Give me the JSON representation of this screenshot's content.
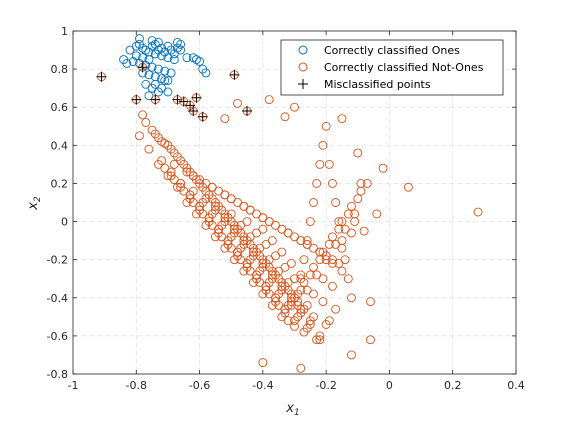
{
  "chart_data": {
    "type": "scatter",
    "xlabel": "x",
    "xlabel_sub": "1",
    "ylabel": "x",
    "ylabel_sub": "2",
    "xlim": [
      -1,
      0.4
    ],
    "ylim": [
      -0.8,
      1
    ],
    "xticks": [
      -1,
      -0.8,
      -0.6,
      -0.4,
      -0.2,
      0,
      0.2,
      0.4
    ],
    "xtick_labels": [
      "-1",
      "-0.8",
      "-0.6",
      "-0.4",
      "-0.2",
      "0",
      "0.2",
      "0.4"
    ],
    "yticks": [
      -0.8,
      -0.6,
      -0.4,
      -0.2,
      0,
      0.2,
      0.4,
      0.6,
      0.8,
      1
    ],
    "ytick_labels": [
      "-0.8",
      "-0.6",
      "-0.4",
      "-0.2",
      "0",
      "0.2",
      "0.4",
      "0.6",
      "0.8",
      "1"
    ],
    "grid": true,
    "legend_position": "top-right",
    "series": [
      {
        "name": "Correctly classified Ones",
        "marker": "circle",
        "color": "#0072BD",
        "x": [
          -0.82,
          -0.8,
          -0.79,
          -0.78,
          -0.77,
          -0.76,
          -0.75,
          -0.74,
          -0.73,
          -0.72,
          -0.71,
          -0.7,
          -0.69,
          -0.68,
          -0.67,
          -0.66,
          -0.8,
          -0.78,
          -0.76,
          -0.74,
          -0.72,
          -0.7,
          -0.68,
          -0.81,
          -0.79,
          -0.77,
          -0.75,
          -0.73,
          -0.71,
          -0.69,
          -0.78,
          -0.76,
          -0.74,
          -0.72,
          -0.7,
          -0.62,
          -0.61,
          -0.6,
          -0.59,
          -0.84,
          -0.83,
          -0.77,
          -0.75,
          -0.73,
          -0.64,
          -0.58,
          -0.76,
          -0.74,
          -0.72,
          -0.7,
          -0.75,
          -0.73,
          -0.67,
          -0.66,
          -0.79,
          -0.71
        ],
        "y": [
          0.9,
          0.92,
          0.93,
          0.91,
          0.9,
          0.89,
          0.92,
          0.93,
          0.9,
          0.91,
          0.89,
          0.92,
          0.9,
          0.88,
          0.91,
          0.93,
          0.87,
          0.86,
          0.85,
          0.88,
          0.87,
          0.86,
          0.85,
          0.84,
          0.83,
          0.82,
          0.81,
          0.8,
          0.79,
          0.78,
          0.78,
          0.77,
          0.76,
          0.75,
          0.74,
          0.86,
          0.85,
          0.84,
          0.8,
          0.85,
          0.83,
          0.72,
          0.7,
          0.68,
          0.86,
          0.78,
          0.66,
          0.72,
          0.7,
          0.68,
          0.95,
          0.94,
          0.94,
          0.9,
          0.96,
          0.74
        ]
      },
      {
        "name": "Correctly classified Not-Ones",
        "marker": "circle",
        "color": "#D95319",
        "x": [
          -0.78,
          -0.77,
          -0.75,
          -0.74,
          -0.73,
          -0.72,
          -0.71,
          -0.7,
          -0.69,
          -0.68,
          -0.67,
          -0.66,
          -0.65,
          -0.64,
          -0.63,
          -0.62,
          -0.61,
          -0.6,
          -0.59,
          -0.58,
          -0.57,
          -0.56,
          -0.55,
          -0.54,
          -0.53,
          -0.52,
          -0.51,
          -0.5,
          -0.49,
          -0.48,
          -0.47,
          -0.46,
          -0.45,
          -0.44,
          -0.43,
          -0.42,
          -0.41,
          -0.4,
          -0.39,
          -0.38,
          -0.37,
          -0.36,
          -0.35,
          -0.34,
          -0.33,
          -0.32,
          -0.31,
          -0.3,
          -0.29,
          -0.28,
          -0.27,
          -0.26,
          -0.25,
          -0.24,
          -0.23,
          -0.22,
          -0.21,
          -0.2,
          -0.19,
          -0.18,
          -0.17,
          -0.16,
          -0.15,
          -0.14,
          -0.13,
          -0.12,
          -0.11,
          -0.1,
          -0.09,
          -0.08,
          -0.06,
          -0.04,
          -0.02,
          0.06,
          0.28,
          -0.79,
          -0.76,
          -0.73,
          -0.7,
          -0.67,
          -0.64,
          -0.61,
          -0.58,
          -0.55,
          -0.52,
          -0.49,
          -0.46,
          -0.43,
          -0.4,
          -0.37,
          -0.34,
          -0.31,
          -0.28,
          -0.25,
          -0.22,
          -0.19,
          -0.16,
          -0.13,
          -0.1,
          -0.07,
          -0.72,
          -0.69,
          -0.66,
          -0.63,
          -0.6,
          -0.57,
          -0.54,
          -0.51,
          -0.48,
          -0.45,
          -0.42,
          -0.39,
          -0.36,
          -0.33,
          -0.3,
          -0.27,
          -0.24,
          -0.21,
          -0.18,
          -0.15,
          -0.12,
          -0.09,
          -0.71,
          -0.68,
          -0.65,
          -0.62,
          -0.59,
          -0.56,
          -0.53,
          -0.5,
          -0.47,
          -0.44,
          -0.41,
          -0.38,
          -0.35,
          -0.32,
          -0.29,
          -0.26,
          -0.23,
          -0.2,
          -0.17,
          -0.14,
          -0.11,
          -0.69,
          -0.66,
          -0.63,
          -0.6,
          -0.57,
          -0.54,
          -0.51,
          -0.48,
          -0.45,
          -0.42,
          -0.39,
          -0.36,
          -0.33,
          -0.3,
          -0.27,
          -0.24,
          -0.21,
          -0.18,
          -0.15,
          -0.12,
          -0.66,
          -0.63,
          -0.6,
          -0.57,
          -0.54,
          -0.51,
          -0.48,
          -0.45,
          -0.42,
          -0.39,
          -0.36,
          -0.33,
          -0.3,
          -0.27,
          -0.24,
          -0.21,
          -0.18,
          -0.15,
          -0.62,
          -0.59,
          -0.56,
          -0.53,
          -0.5,
          -0.47,
          -0.44,
          -0.41,
          -0.38,
          -0.35,
          -0.32,
          -0.29,
          -0.26,
          -0.23,
          -0.2,
          -0.17,
          -0.58,
          -0.55,
          -0.52,
          -0.49,
          -0.46,
          -0.43,
          -0.4,
          -0.37,
          -0.34,
          -0.31,
          -0.28,
          -0.25,
          -0.22,
          -0.19,
          -0.55,
          -0.52,
          -0.49,
          -0.46,
          -0.43,
          -0.4,
          -0.37,
          -0.34,
          -0.31,
          -0.28,
          -0.25,
          -0.5,
          -0.47,
          -0.44,
          -0.41,
          -0.38,
          -0.35,
          -0.32,
          -0.29,
          -0.26,
          -0.45,
          -0.42,
          -0.39,
          -0.36,
          -0.33,
          -0.3,
          -0.4,
          -0.37,
          -0.34,
          -0.31,
          -0.28,
          -0.22,
          -0.12,
          -0.06,
          -0.4,
          -0.28,
          -0.38,
          -0.48,
          -0.52,
          -0.3,
          -0.33,
          -0.15,
          -0.68,
          -0.62,
          -0.56,
          -0.5,
          -0.44,
          -0.38,
          -0.32,
          -0.26,
          -0.2,
          -0.64,
          -0.58,
          -0.52,
          -0.46,
          -0.4,
          -0.34,
          -0.28,
          -0.22,
          -0.16,
          -0.6,
          -0.54,
          -0.48,
          -0.42,
          -0.36,
          -0.3,
          -0.24,
          -0.18,
          -0.56,
          -0.5,
          -0.44,
          -0.38,
          -0.32,
          -0.26,
          -0.2,
          -0.52,
          -0.46,
          -0.4,
          -0.34,
          -0.28,
          -0.22
        ],
        "y": [
          0.56,
          0.52,
          0.48,
          0.46,
          0.44,
          0.42,
          0.41,
          0.4,
          0.38,
          0.36,
          0.34,
          0.32,
          0.3,
          0.28,
          0.26,
          0.24,
          0.22,
          0.2,
          0.18,
          0.16,
          0.14,
          0.12,
          0.1,
          0.08,
          0.06,
          0.04,
          0.02,
          0.0,
          -0.02,
          -0.04,
          -0.06,
          -0.08,
          -0.1,
          -0.12,
          -0.14,
          -0.16,
          -0.18,
          -0.2,
          -0.22,
          -0.24,
          -0.26,
          -0.28,
          -0.3,
          -0.32,
          -0.34,
          -0.36,
          -0.38,
          -0.4,
          -0.42,
          -0.3,
          -0.2,
          -0.1,
          0.0,
          0.1,
          0.2,
          0.3,
          0.4,
          0.5,
          0.3,
          0.2,
          0.1,
          0.0,
          -0.1,
          -0.2,
          -0.3,
          -0.4,
          0.0,
          0.36,
          0.2,
          -0.05,
          -0.42,
          0.04,
          0.28,
          0.18,
          0.05,
          0.45,
          0.38,
          0.3,
          0.24,
          0.18,
          0.1,
          0.04,
          -0.02,
          -0.08,
          -0.14,
          -0.2,
          -0.26,
          -0.32,
          -0.38,
          -0.44,
          -0.5,
          -0.44,
          -0.36,
          -0.28,
          -0.2,
          -0.12,
          -0.04,
          0.04,
          0.12,
          0.2,
          0.32,
          0.26,
          0.2,
          0.14,
          0.08,
          0.02,
          -0.04,
          -0.1,
          -0.16,
          -0.22,
          -0.28,
          -0.34,
          -0.4,
          -0.46,
          -0.4,
          -0.32,
          -0.24,
          -0.16,
          -0.08,
          0.0,
          0.08,
          0.16,
          0.28,
          0.22,
          0.16,
          0.1,
          0.04,
          -0.02,
          -0.08,
          -0.14,
          -0.2,
          -0.26,
          -0.32,
          -0.38,
          -0.44,
          -0.52,
          -0.44,
          -0.36,
          -0.28,
          -0.2,
          -0.12,
          -0.04,
          0.04,
          0.24,
          0.18,
          0.12,
          0.06,
          0.0,
          -0.06,
          -0.12,
          -0.18,
          -0.24,
          -0.3,
          -0.36,
          -0.42,
          -0.48,
          -0.55,
          -0.46,
          -0.38,
          -0.3,
          -0.22,
          -0.14,
          -0.06,
          0.2,
          0.14,
          0.08,
          0.02,
          -0.04,
          -0.1,
          -0.16,
          -0.22,
          -0.28,
          -0.34,
          -0.4,
          -0.46,
          -0.52,
          -0.58,
          -0.5,
          -0.42,
          -0.34,
          -0.26,
          0.16,
          0.1,
          0.04,
          -0.02,
          -0.08,
          -0.14,
          -0.2,
          -0.26,
          -0.32,
          -0.38,
          -0.44,
          -0.5,
          -0.56,
          -0.62,
          -0.54,
          -0.46,
          0.12,
          0.06,
          0.0,
          -0.06,
          -0.12,
          -0.18,
          -0.24,
          -0.3,
          -0.36,
          -0.42,
          -0.48,
          -0.54,
          -0.6,
          -0.52,
          0.08,
          0.02,
          -0.04,
          -0.1,
          -0.16,
          -0.22,
          -0.28,
          -0.34,
          -0.4,
          -0.46,
          -0.52,
          0.04,
          -0.02,
          -0.08,
          -0.14,
          -0.2,
          -0.26,
          -0.32,
          -0.38,
          -0.44,
          0.0,
          -0.06,
          -0.12,
          -0.18,
          -0.24,
          -0.3,
          -0.04,
          -0.1,
          -0.16,
          -0.22,
          -0.28,
          -0.62,
          -0.7,
          -0.62,
          -0.74,
          -0.77,
          0.64,
          0.62,
          0.54,
          0.6,
          0.55,
          0.54,
          0.3,
          0.24,
          0.18,
          0.12,
          0.06,
          0.0,
          -0.06,
          -0.12,
          -0.18,
          0.26,
          0.2,
          0.14,
          0.08,
          0.02,
          -0.04,
          -0.1,
          -0.16,
          -0.22,
          0.22,
          0.16,
          0.1,
          0.04,
          -0.02,
          -0.08,
          -0.14,
          -0.2,
          0.18,
          0.12,
          0.06,
          0.0,
          -0.06,
          -0.12,
          -0.18,
          0.14,
          0.08,
          0.02,
          -0.04,
          -0.1,
          -0.16
        ]
      },
      {
        "name": "Misclassified points",
        "marker": "plus",
        "color": "#000000",
        "circle_color": "#D95319",
        "x": [
          -0.91,
          -0.8,
          -0.78,
          -0.74,
          -0.67,
          -0.65,
          -0.63,
          -0.62,
          -0.61,
          -0.59,
          -0.49,
          -0.45
        ],
        "y": [
          0.76,
          0.64,
          0.81,
          0.64,
          0.64,
          0.63,
          0.61,
          0.58,
          0.65,
          0.55,
          0.77,
          0.58
        ]
      }
    ]
  }
}
